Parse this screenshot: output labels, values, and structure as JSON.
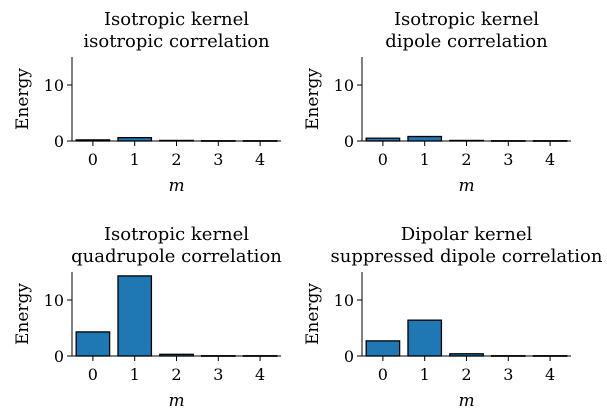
{
  "chart_data": [
    {
      "type": "bar",
      "title_lines": [
        "Isotropic kernel",
        "isotropic correlation"
      ],
      "xlabel": "m",
      "ylabel": "Energy",
      "categories": [
        "0",
        "1",
        "2",
        "3",
        "4"
      ],
      "values": [
        0.2,
        0.6,
        0.1,
        0.05,
        0.05
      ],
      "ylim": [
        0,
        15
      ],
      "yticks": [
        0,
        10
      ],
      "bar_color": "#1f77b4"
    },
    {
      "type": "bar",
      "title_lines": [
        "Isotropic kernel",
        "dipole correlation"
      ],
      "xlabel": "m",
      "ylabel": "Energy",
      "categories": [
        "0",
        "1",
        "2",
        "3",
        "4"
      ],
      "values": [
        0.5,
        0.8,
        0.1,
        0.05,
        0.05
      ],
      "ylim": [
        0,
        15
      ],
      "yticks": [
        0,
        10
      ],
      "bar_color": "#1f77b4"
    },
    {
      "type": "bar",
      "title_lines": [
        "Isotropic kernel",
        "quadrupole correlation"
      ],
      "xlabel": "m",
      "ylabel": "Energy",
      "categories": [
        "0",
        "1",
        "2",
        "3",
        "4"
      ],
      "values": [
        4.3,
        14.3,
        0.3,
        0.05,
        0.05
      ],
      "ylim": [
        0,
        15
      ],
      "yticks": [
        0,
        10
      ],
      "bar_color": "#1f77b4"
    },
    {
      "type": "bar",
      "title_lines": [
        "Dipolar kernel",
        "suppressed dipole correlation"
      ],
      "xlabel": "m",
      "ylabel": "Energy",
      "categories": [
        "0",
        "1",
        "2",
        "3",
        "4"
      ],
      "values": [
        2.7,
        6.4,
        0.4,
        0.05,
        0.05
      ],
      "ylim": [
        0,
        15
      ],
      "yticks": [
        0,
        10
      ],
      "bar_color": "#1f77b4"
    }
  ]
}
